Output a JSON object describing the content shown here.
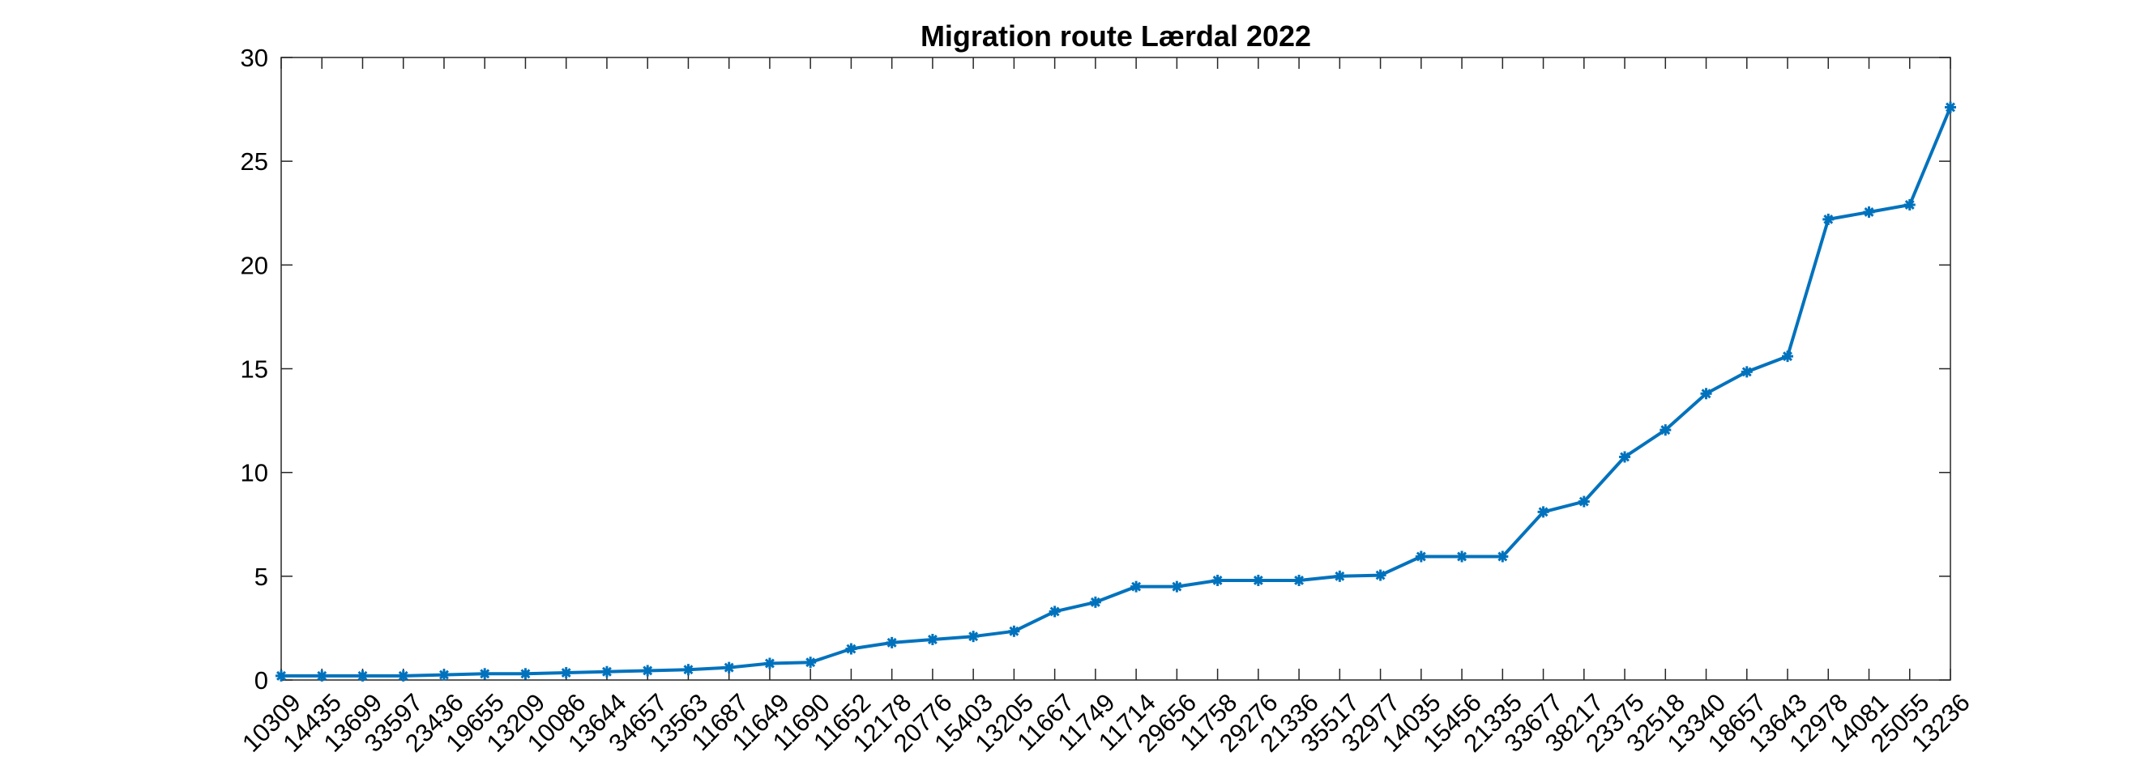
{
  "chart_data": {
    "type": "line",
    "title": "Migration route Lærdal 2022",
    "xlabel": "",
    "ylabel": "",
    "ylim": [
      0,
      30
    ],
    "yticks": [
      0,
      5,
      10,
      15,
      20,
      25,
      30
    ],
    "grid": false,
    "series_color": "#0072BD",
    "marker": "asterisk",
    "categories": [
      "10309",
      "14435",
      "13699",
      "33597",
      "23436",
      "19655",
      "13209",
      "10086",
      "13644",
      "34657",
      "13563",
      "11687",
      "11649",
      "11690",
      "11652",
      "12178",
      "20776",
      "15403",
      "13205",
      "11667",
      "11749",
      "11714",
      "29656",
      "11758",
      "29276",
      "21336",
      "35517",
      "32977",
      "14035",
      "15456",
      "21335",
      "33677",
      "38217",
      "23375",
      "32518",
      "13340",
      "18657",
      "13643",
      "12978",
      "14081",
      "25055",
      "13236"
    ],
    "series": [
      {
        "name": "Migration route",
        "values": [
          0.2,
          0.2,
          0.2,
          0.2,
          0.25,
          0.3,
          0.3,
          0.35,
          0.4,
          0.45,
          0.5,
          0.6,
          0.8,
          0.85,
          1.5,
          1.8,
          1.95,
          2.1,
          2.35,
          3.3,
          3.75,
          4.5,
          4.5,
          4.8,
          4.8,
          4.8,
          5.0,
          5.05,
          5.95,
          5.95,
          5.95,
          8.1,
          8.6,
          10.75,
          12.05,
          13.8,
          14.85,
          15.6,
          22.2,
          22.55,
          22.9,
          27.6
        ]
      }
    ]
  }
}
